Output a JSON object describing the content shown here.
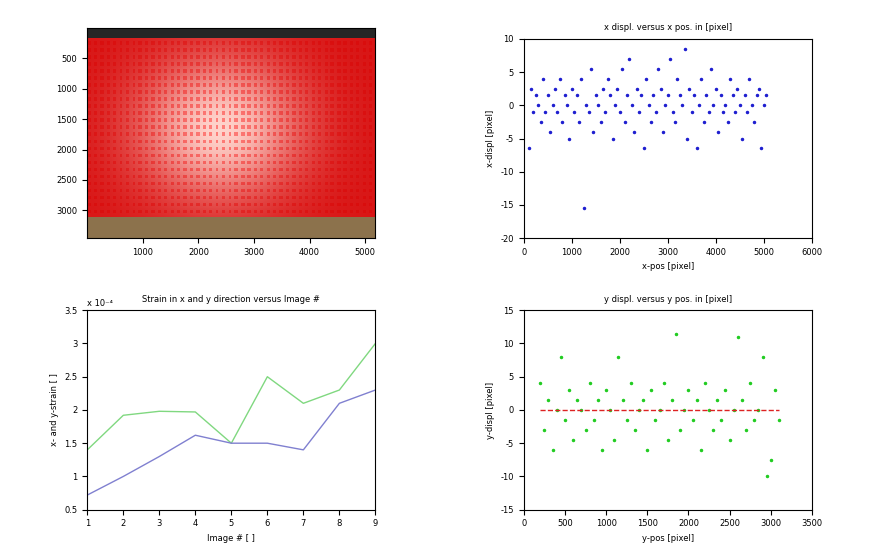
{
  "chart_data": [
    {
      "type": "image",
      "xlim": [
        0,
        5184
      ],
      "ylim": [
        3456,
        0
      ],
      "xticks": [
        1000,
        2000,
        3000,
        4000,
        5000
      ],
      "yticks": [
        500,
        1000,
        1500,
        2000,
        2500,
        3000
      ]
    },
    {
      "type": "scatter",
      "title": "x displ. versus x pos. in [pixel]",
      "x_label": "x-pos [pixel]",
      "y_label": "x-displ [pixel]",
      "xlim": [
        0,
        6000
      ],
      "ylim": [
        -20,
        10
      ],
      "xticks": [
        0,
        1000,
        2000,
        3000,
        4000,
        5000,
        6000
      ],
      "yticks": [
        -20,
        -15,
        -10,
        -5,
        0,
        5,
        10
      ],
      "series": [
        {
          "type": "scatter",
          "color": "#1f1fd0",
          "marker": "dot",
          "x": [
            100,
            150,
            200,
            250,
            300,
            350,
            400,
            450,
            500,
            550,
            600,
            650,
            700,
            750,
            800,
            850,
            900,
            950,
            1000,
            1050,
            1100,
            1150,
            1200,
            1250,
            1300,
            1350,
            1400,
            1450,
            1500,
            1550,
            1600,
            1650,
            1700,
            1750,
            1800,
            1850,
            1900,
            1950,
            2000,
            2050,
            2100,
            2150,
            2200,
            2250,
            2300,
            2350,
            2400,
            2450,
            2500,
            2550,
            2600,
            2650,
            2700,
            2750,
            2800,
            2850,
            2900,
            2950,
            3000,
            3050,
            3100,
            3150,
            3200,
            3250,
            3300,
            3350,
            3400,
            3450,
            3500,
            3550,
            3600,
            3650,
            3700,
            3750,
            3800,
            3850,
            3900,
            3950,
            4000,
            4050,
            4100,
            4150,
            4200,
            4250,
            4300,
            4350,
            4400,
            4450,
            4500,
            4550,
            4600,
            4650,
            4700,
            4750,
            4800,
            4850,
            4900,
            4950,
            5000,
            5050
          ],
          "values": [
            -6.5,
            2.5,
            -1,
            1.5,
            0,
            -2.5,
            4,
            -1,
            1.5,
            -4,
            0,
            2.5,
            -1,
            4,
            -2.5,
            1.5,
            0,
            -5,
            2.5,
            -1,
            1.5,
            -2.5,
            4,
            -15.5,
            0,
            -1,
            5.5,
            -4,
            1.5,
            0,
            -2.5,
            2.5,
            -1,
            4,
            1.5,
            -5,
            0,
            2.5,
            -1,
            5.5,
            -2.5,
            1.5,
            7,
            0,
            -4,
            2.5,
            -1,
            1.5,
            -6.5,
            4,
            0,
            -2.5,
            1.5,
            -1,
            5.5,
            2.5,
            -4,
            0,
            1.5,
            7,
            -1,
            -2.5,
            4,
            1.5,
            0,
            8.5,
            -5,
            2.5,
            -1,
            1.5,
            -6.5,
            0,
            4,
            -2.5,
            1.5,
            -1,
            5.5,
            0,
            2.5,
            -4,
            1.5,
            -1,
            0,
            -2.5,
            4,
            1.5,
            -1,
            2.5,
            0,
            -5,
            1.5,
            -1,
            4,
            0,
            -2.5,
            1.5,
            2.5,
            -6.5,
            0,
            1.5
          ]
        }
      ]
    },
    {
      "type": "line",
      "title": "Strain in x and y direction versus Image #",
      "x_label": "Image # [ ]",
      "y_label": "x- and y-strain [ ]",
      "annotations": [
        "x 10⁻⁴"
      ],
      "xlim": [
        1,
        9
      ],
      "ylim": [
        0.5,
        3.5
      ],
      "xticks": [
        1,
        2,
        3,
        4,
        5,
        6,
        7,
        8,
        9
      ],
      "yticks": [
        0.5,
        1,
        1.5,
        2,
        2.5,
        3,
        3.5
      ],
      "x": [
        1,
        2,
        3,
        4,
        5,
        6,
        7,
        8,
        9
      ],
      "series": [
        {
          "color": "#80d880",
          "line_style": "solid",
          "values": [
            1.4,
            1.92,
            1.98,
            1.97,
            1.5,
            2.5,
            2.1,
            2.3,
            3.0
          ]
        },
        {
          "color": "#8080d0",
          "line_style": "solid",
          "values": [
            0.72,
            1.0,
            1.3,
            1.62,
            1.5,
            1.5,
            1.4,
            2.1,
            2.3
          ]
        }
      ]
    },
    {
      "type": "scatter",
      "title": "y displ. versus y pos. in [pixel]",
      "x_label": "y-pos [pixel]",
      "y_label": "y-displ [pixel]",
      "xlim": [
        0,
        3500
      ],
      "ylim": [
        -15,
        15
      ],
      "xticks": [
        0,
        500,
        1000,
        1500,
        2000,
        2500,
        3000,
        3500
      ],
      "yticks": [
        -15,
        -10,
        -5,
        0,
        5,
        10,
        15
      ],
      "series": [
        {
          "type": "scatter",
          "color": "#22cc22",
          "marker": "dot",
          "x": [
            200,
            250,
            300,
            350,
            400,
            450,
            500,
            550,
            600,
            650,
            700,
            750,
            800,
            850,
            900,
            950,
            1000,
            1050,
            1100,
            1150,
            1200,
            1250,
            1300,
            1350,
            1400,
            1450,
            1500,
            1550,
            1600,
            1650,
            1700,
            1750,
            1800,
            1850,
            1900,
            1950,
            2000,
            2050,
            2100,
            2150,
            2200,
            2250,
            2300,
            2350,
            2400,
            2450,
            2500,
            2550,
            2600,
            2650,
            2700,
            2750,
            2800,
            2850,
            2900,
            2950,
            3000,
            3050,
            3100
          ],
          "values": [
            4,
            -3,
            1.5,
            -6,
            0,
            8,
            -1.5,
            3,
            -4.5,
            1.5,
            0,
            -3,
            4,
            -1.5,
            1.5,
            -6,
            3,
            0,
            -4.5,
            8,
            1.5,
            -1.5,
            4,
            -3,
            0,
            1.5,
            -6,
            3,
            -1.5,
            0,
            4,
            -4.5,
            1.5,
            11.5,
            -3,
            0,
            3,
            -1.5,
            1.5,
            -6,
            4,
            0,
            -3,
            1.5,
            -1.5,
            3,
            -4.5,
            0,
            11,
            1.5,
            -3,
            4,
            -1.5,
            0,
            8,
            -10,
            -7.5,
            3,
            -1.5
          ]
        },
        {
          "type": "line",
          "color": "#dd2222",
          "line_style": "dashed",
          "x": [
            200,
            3100
          ],
          "values": [
            0,
            0
          ]
        }
      ]
    }
  ]
}
